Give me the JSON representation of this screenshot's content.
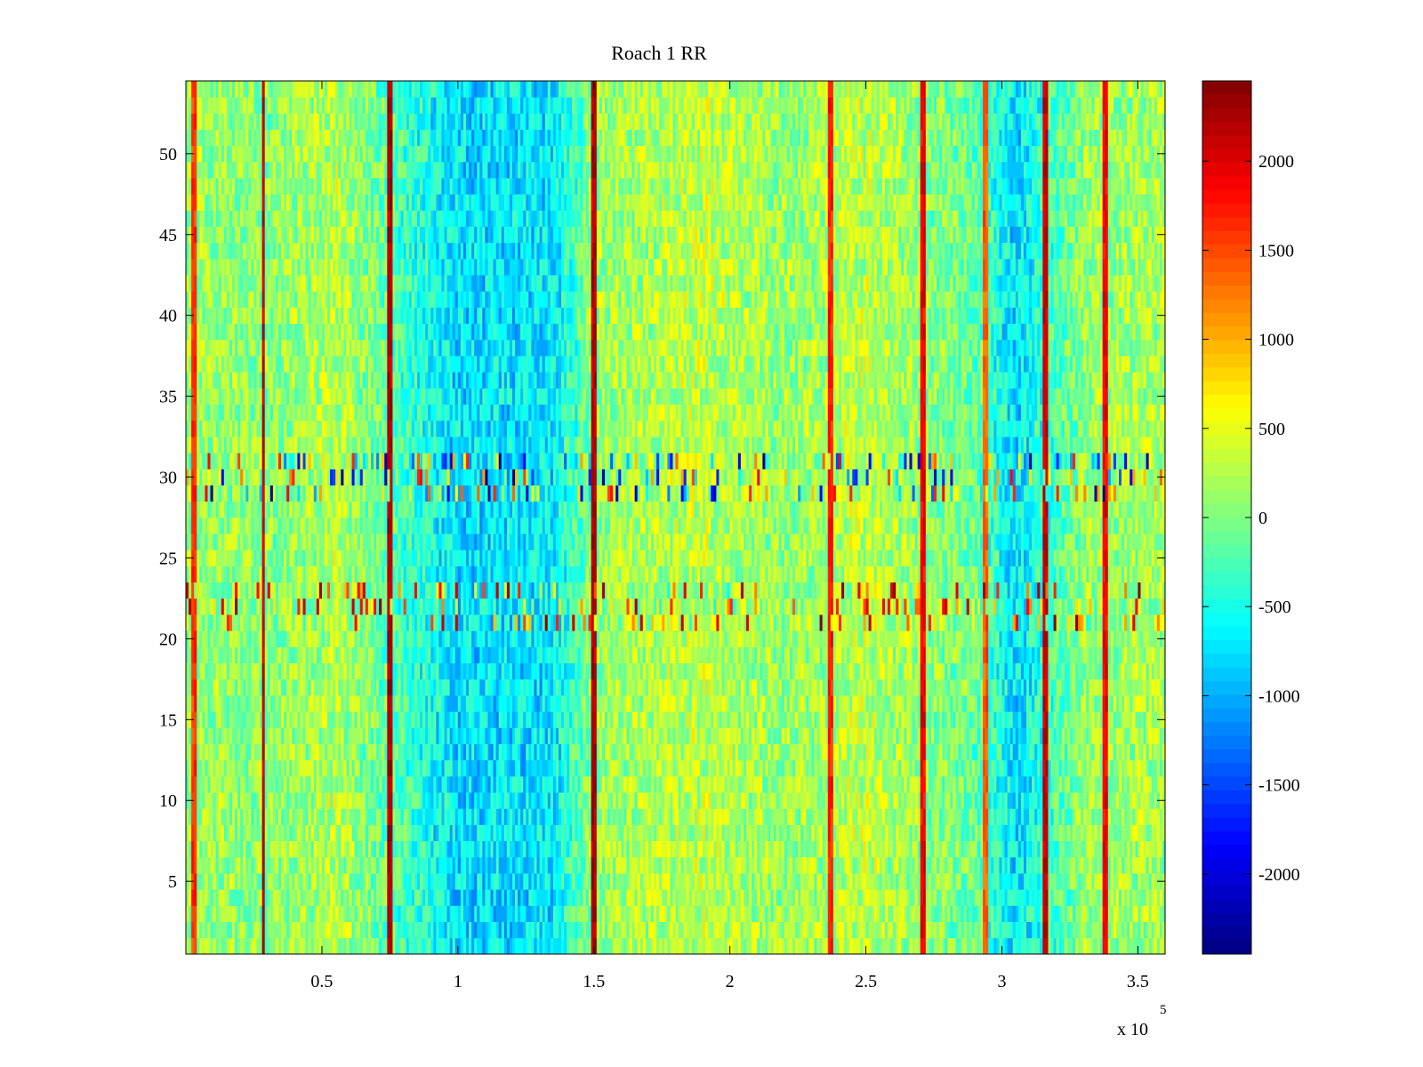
{
  "chart_data": {
    "type": "heatmap",
    "title": "Roach 1 RR",
    "xlabel": "",
    "ylabel": "",
    "x_exponent_label": "x 10",
    "x_exponent_power": "5",
    "xlim": [
      0,
      3.6
    ],
    "ylim": [
      0.5,
      54.5
    ],
    "x_ticks": [
      0.5,
      1,
      1.5,
      2,
      2.5,
      3,
      3.5
    ],
    "x_tick_labels": [
      "0.5",
      "1",
      "1.5",
      "2",
      "2.5",
      "3",
      "3.5"
    ],
    "y_ticks": [
      5,
      10,
      15,
      20,
      25,
      30,
      35,
      40,
      45,
      50
    ],
    "y_tick_labels": [
      "5",
      "10",
      "15",
      "20",
      "25",
      "30",
      "35",
      "40",
      "45",
      "50"
    ],
    "n_rows": 54,
    "n_cols": 360,
    "colormap": "jet",
    "clim": [
      -2450,
      2450
    ],
    "colorbar_ticks": [
      2000,
      1500,
      1000,
      500,
      0,
      -500,
      -1000,
      -1500,
      -2000
    ],
    "colorbar_tick_labels": [
      "2000",
      "1500",
      "1000",
      "500",
      "0",
      "-500",
      "-1000",
      "-1500",
      "-2000"
    ],
    "column_trend": [
      {
        "x": 0.0,
        "value": 150
      },
      {
        "x": 0.3,
        "value": 50
      },
      {
        "x": 0.55,
        "value": 250
      },
      {
        "x": 0.8,
        "value": -300
      },
      {
        "x": 1.0,
        "value": -750
      },
      {
        "x": 1.35,
        "value": -700
      },
      {
        "x": 1.5,
        "value": 100
      },
      {
        "x": 1.9,
        "value": 300
      },
      {
        "x": 2.2,
        "value": 100
      },
      {
        "x": 2.5,
        "value": 300
      },
      {
        "x": 2.9,
        "value": -100
      },
      {
        "x": 3.05,
        "value": -750
      },
      {
        "x": 3.3,
        "value": 100
      },
      {
        "x": 3.6,
        "value": 200
      }
    ],
    "high_value_columns": [
      {
        "x": 0.03,
        "value": 1800
      },
      {
        "x": 0.285,
        "value": 2300
      },
      {
        "x": 0.75,
        "value": 2400
      },
      {
        "x": 1.5,
        "value": 2400
      },
      {
        "x": 2.37,
        "value": 1900
      },
      {
        "x": 2.71,
        "value": 2100
      },
      {
        "x": 2.94,
        "value": 1600
      },
      {
        "x": 3.16,
        "value": 2300
      },
      {
        "x": 3.38,
        "value": 2100
      }
    ],
    "banded_rows": [
      {
        "rows": [
          21,
          23
        ],
        "value_range": [
          -600,
          2400
        ],
        "description": "alternating high bars"
      },
      {
        "rows": [
          29,
          31
        ],
        "value_range": [
          -2400,
          1800
        ],
        "description": "sparse dark bars"
      }
    ]
  }
}
